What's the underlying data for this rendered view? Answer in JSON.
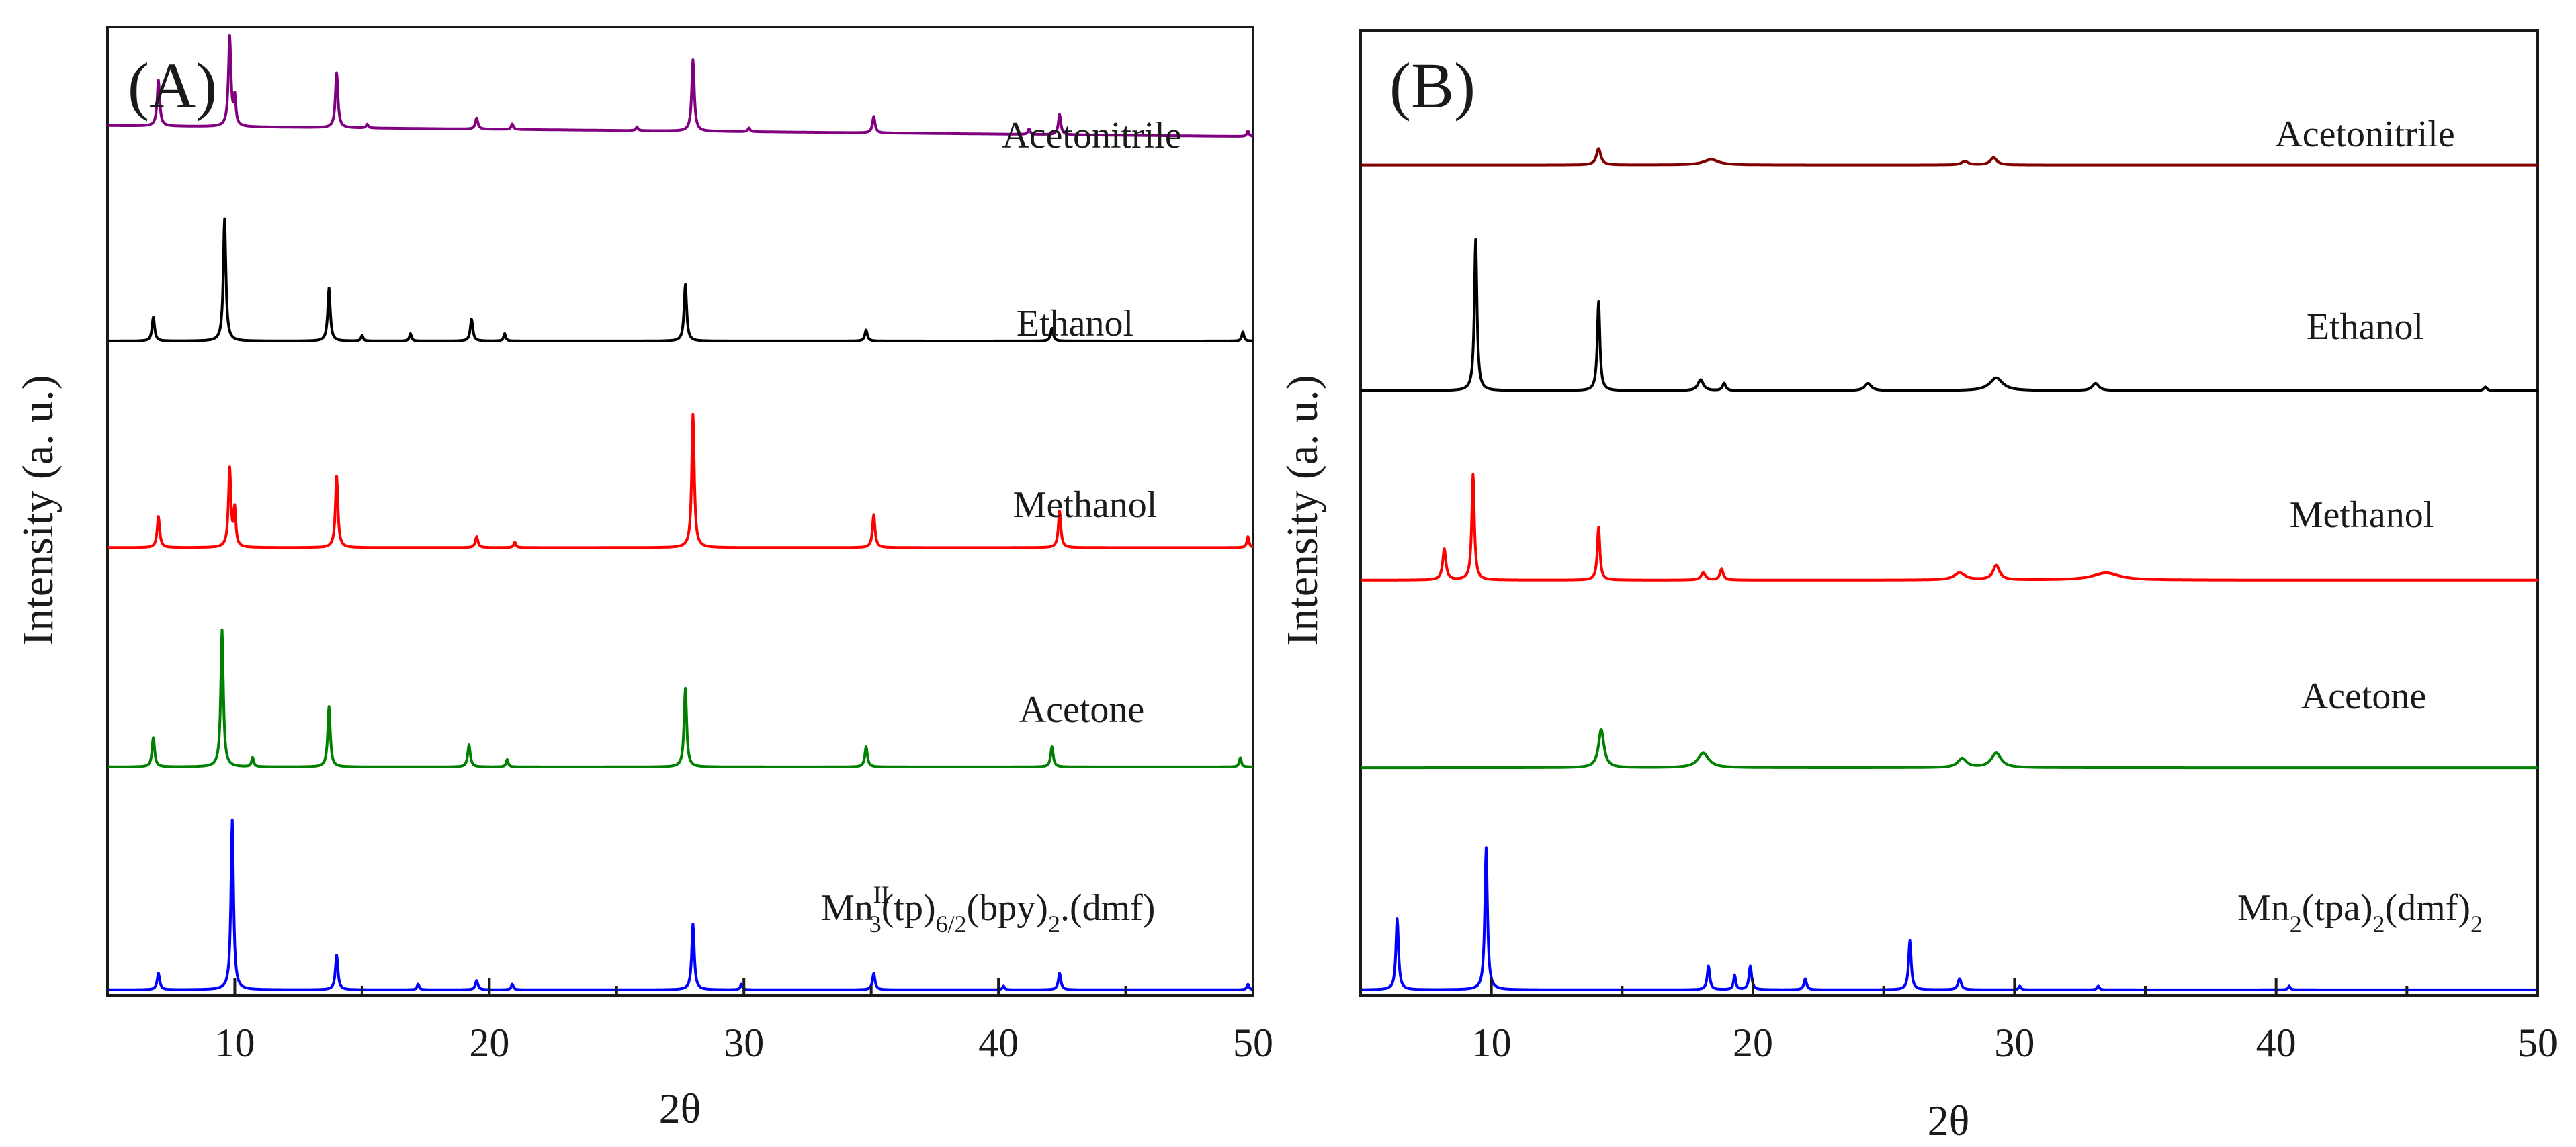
{
  "figure": {
    "panels": [
      {
        "label": "(A)",
        "xlabel": "2θ",
        "ylabel": "Intensity (a. u.)",
        "xticks": [
          "10",
          "20",
          "30",
          "40",
          "50"
        ],
        "trace_labels": [
          "Acetonitrile",
          "Ethanol",
          "Methanol",
          "Acetone"
        ],
        "bottom_label": {
          "main": "Mn",
          "sup": "II",
          "sub1": "3",
          "text1": "(tp)",
          "sub2": "6/2",
          "text2": "(bpy)",
          "sub3": "2",
          "text3": ".(dmf)"
        }
      },
      {
        "label": "(B)",
        "xlabel": "2θ",
        "ylabel": "Intensity (a. u.)",
        "xticks": [
          "10",
          "20",
          "30",
          "40",
          "50"
        ],
        "trace_labels": [
          "Acetonitrile",
          "Ethanol",
          "Methanol",
          "Acetone"
        ],
        "bottom_label": {
          "main": "Mn",
          "sub1": "2",
          "text1": "(tpa)",
          "sub2": "2",
          "text2": "(dmf)",
          "sub3": "2"
        }
      }
    ]
  },
  "chart_data": [
    {
      "type": "line",
      "title": "(A)",
      "xlabel": "2θ",
      "ylabel": "Intensity (a. u.)",
      "xlim": [
        5,
        50
      ],
      "xticks": [
        10,
        20,
        30,
        40,
        50
      ],
      "ylim": [
        0,
        5.3
      ],
      "y_axis_values_shown": false,
      "series": [
        {
          "name": "Mn(II)3(tp)6/2(bpy)2.(dmf)",
          "color": "#0000ff",
          "baseline": 0.03,
          "slope": 0,
          "peaks": [
            [
              7.0,
              0.09,
              0.12
            ],
            [
              9.9,
              0.93,
              0.12
            ],
            [
              14.0,
              0.19,
              0.12
            ],
            [
              17.2,
              0.03,
              0.1
            ],
            [
              19.5,
              0.05,
              0.12
            ],
            [
              20.9,
              0.03,
              0.1
            ],
            [
              28.0,
              0.36,
              0.12
            ],
            [
              29.9,
              0.03,
              0.1
            ],
            [
              35.1,
              0.09,
              0.12
            ],
            [
              40.2,
              0.02,
              0.1
            ],
            [
              42.4,
              0.09,
              0.12
            ],
            [
              49.8,
              0.03,
              0.1
            ]
          ]
        },
        {
          "name": "Acetone",
          "color": "#008000",
          "baseline": 1.25,
          "slope": 0,
          "peaks": [
            [
              6.8,
              0.16,
              0.12
            ],
            [
              9.5,
              0.75,
              0.12
            ],
            [
              10.7,
              0.05,
              0.1
            ],
            [
              13.7,
              0.33,
              0.12
            ],
            [
              19.2,
              0.12,
              0.12
            ],
            [
              20.7,
              0.04,
              0.1
            ],
            [
              27.7,
              0.43,
              0.12
            ],
            [
              34.8,
              0.11,
              0.12
            ],
            [
              42.1,
              0.11,
              0.12
            ],
            [
              49.5,
              0.05,
              0.1
            ]
          ]
        },
        {
          "name": "Methanol",
          "color": "#ff0000",
          "baseline": 2.45,
          "slope": 0,
          "peaks": [
            [
              7.0,
              0.17,
              0.12
            ],
            [
              9.8,
              0.43,
              0.12
            ],
            [
              10.0,
              0.2,
              0.1
            ],
            [
              14.0,
              0.39,
              0.12
            ],
            [
              19.5,
              0.06,
              0.12
            ],
            [
              21.0,
              0.03,
              0.1
            ],
            [
              28.0,
              0.73,
              0.12
            ],
            [
              35.1,
              0.18,
              0.12
            ],
            [
              42.4,
              0.2,
              0.12
            ],
            [
              49.8,
              0.06,
              0.1
            ]
          ]
        },
        {
          "name": "Ethanol",
          "color": "#000000",
          "baseline": 3.58,
          "slope": 0,
          "peaks": [
            [
              6.8,
              0.13,
              0.12
            ],
            [
              9.6,
              0.67,
              0.12
            ],
            [
              13.7,
              0.29,
              0.12
            ],
            [
              15.0,
              0.03,
              0.1
            ],
            [
              16.9,
              0.04,
              0.1
            ],
            [
              19.3,
              0.12,
              0.12
            ],
            [
              20.6,
              0.04,
              0.1
            ],
            [
              27.7,
              0.31,
              0.12
            ],
            [
              34.8,
              0.06,
              0.12
            ],
            [
              42.1,
              0.07,
              0.12
            ],
            [
              49.6,
              0.05,
              0.1
            ]
          ]
        },
        {
          "name": "Acetonitrile",
          "color": "#800080",
          "baseline": 4.76,
          "slope": -0.06,
          "peaks": [
            [
              7.0,
              0.25,
              0.12
            ],
            [
              9.8,
              0.49,
              0.12
            ],
            [
              10.0,
              0.15,
              0.1
            ],
            [
              14.0,
              0.3,
              0.12
            ],
            [
              15.2,
              0.02,
              0.1
            ],
            [
              19.5,
              0.06,
              0.12
            ],
            [
              20.9,
              0.03,
              0.1
            ],
            [
              25.8,
              0.02,
              0.1
            ],
            [
              28.0,
              0.39,
              0.12
            ],
            [
              30.2,
              0.02,
              0.1
            ],
            [
              35.1,
              0.09,
              0.12
            ],
            [
              41.2,
              0.03,
              0.1
            ],
            [
              42.4,
              0.11,
              0.12
            ],
            [
              49.8,
              0.03,
              0.1
            ]
          ]
        }
      ]
    },
    {
      "type": "line",
      "title": "(B)",
      "xlabel": "2θ",
      "ylabel": "Intensity (a. u.)",
      "xlim": [
        5,
        50
      ],
      "xticks": [
        10,
        20,
        30,
        40,
        50
      ],
      "ylim": [
        0,
        5.3
      ],
      "y_axis_values_shown": false,
      "series": [
        {
          "name": "Mn2(tpa)2(dmf)2",
          "color": "#0000ff",
          "baseline": 0.03,
          "slope": 0,
          "peaks": [
            [
              6.4,
              0.39,
              0.12
            ],
            [
              9.8,
              0.78,
              0.12
            ],
            [
              18.3,
              0.13,
              0.12
            ],
            [
              19.3,
              0.08,
              0.1
            ],
            [
              19.9,
              0.13,
              0.12
            ],
            [
              22.0,
              0.06,
              0.12
            ],
            [
              26.0,
              0.27,
              0.12
            ],
            [
              27.9,
              0.06,
              0.15
            ],
            [
              30.2,
              0.02,
              0.1
            ],
            [
              33.2,
              0.02,
              0.1
            ],
            [
              40.5,
              0.02,
              0.1
            ]
          ]
        },
        {
          "name": "Acetone",
          "color": "#008000",
          "baseline": 1.25,
          "slope": 0,
          "peaks": [
            [
              14.2,
              0.21,
              0.25
            ],
            [
              18.1,
              0.08,
              0.5
            ],
            [
              28.0,
              0.05,
              0.4
            ],
            [
              29.3,
              0.08,
              0.45
            ]
          ]
        },
        {
          "name": "Methanol",
          "color": "#ff0000",
          "baseline": 2.28,
          "slope": 0,
          "peaks": [
            [
              8.2,
              0.17,
              0.15
            ],
            [
              9.3,
              0.58,
              0.12
            ],
            [
              14.1,
              0.29,
              0.12
            ],
            [
              18.1,
              0.04,
              0.2
            ],
            [
              18.8,
              0.06,
              0.15
            ],
            [
              27.9,
              0.04,
              0.5
            ],
            [
              29.3,
              0.08,
              0.3
            ],
            [
              33.5,
              0.04,
              1.2
            ]
          ]
        },
        {
          "name": "Ethanol",
          "color": "#000000",
          "baseline": 3.32,
          "slope": 0,
          "peaks": [
            [
              9.4,
              0.83,
              0.12
            ],
            [
              14.1,
              0.49,
              0.12
            ],
            [
              18.0,
              0.06,
              0.25
            ],
            [
              18.9,
              0.04,
              0.15
            ],
            [
              24.4,
              0.04,
              0.3
            ],
            [
              29.3,
              0.07,
              0.6
            ],
            [
              33.1,
              0.04,
              0.3
            ],
            [
              48.0,
              0.02,
              0.15
            ]
          ]
        },
        {
          "name": "Acetonitrile",
          "color": "#800000",
          "baseline": 4.56,
          "slope": 0,
          "peaks": [
            [
              14.1,
              0.09,
              0.2
            ],
            [
              18.4,
              0.03,
              0.7
            ],
            [
              28.1,
              0.02,
              0.3
            ],
            [
              29.2,
              0.04,
              0.3
            ]
          ]
        }
      ]
    }
  ]
}
